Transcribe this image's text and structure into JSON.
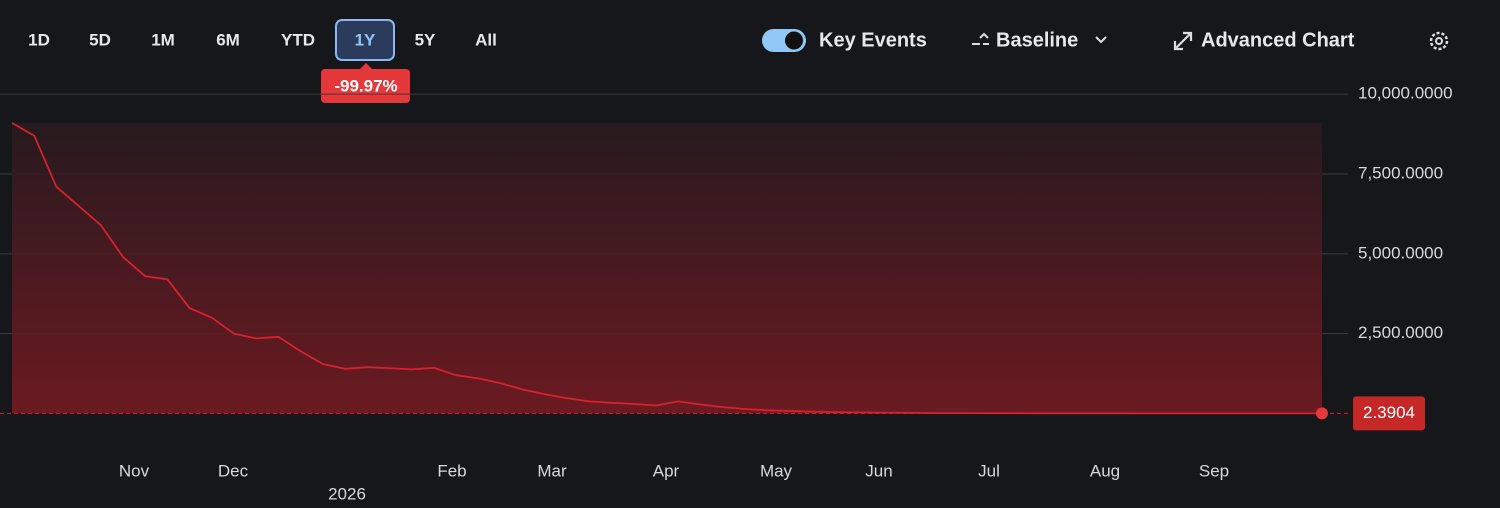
{
  "toolbar": {
    "ranges": [
      "1D",
      "5D",
      "1M",
      "6M",
      "YTD",
      "1Y",
      "5Y",
      "All"
    ],
    "selected": "1Y",
    "change": "-99.97%",
    "key_events": "Key Events",
    "baseline": "Baseline",
    "advanced_chart": "Advanced Chart"
  },
  "chart_data": {
    "type": "line",
    "x_labels": [
      "Nov",
      "Dec",
      "2026",
      "Feb",
      "Mar",
      "Apr",
      "May",
      "Jun",
      "Jul",
      "Aug",
      "Sep"
    ],
    "series": [
      {
        "color": "#d8202f",
        "values": [
          9100,
          8700,
          7100,
          6500,
          5900,
          4900,
          4300,
          4200,
          3300,
          3000,
          2500,
          2350,
          2400,
          1950,
          1550,
          1400,
          1450,
          1420,
          1380,
          1430,
          1200,
          1100,
          950,
          750,
          600,
          480,
          380,
          330,
          300,
          250,
          380,
          280,
          200,
          140,
          100,
          80,
          60,
          45,
          35,
          25,
          20,
          16,
          13,
          11,
          9,
          8,
          7,
          6,
          5.5,
          5,
          4.5,
          4,
          3.8,
          3.5,
          3.2,
          3,
          2.8,
          2.6,
          2.5,
          2.3904
        ]
      }
    ],
    "ylim": [
      -1300,
      10600
    ],
    "yticks": [
      {
        "value": 2500,
        "label": "2,500.0000"
      },
      {
        "value": 5000,
        "label": "5,000.0000"
      },
      {
        "value": 7500,
        "label": "7,500.0000"
      },
      {
        "value": 10000,
        "label": "10,000.0000"
      }
    ],
    "grid": true
  }
}
